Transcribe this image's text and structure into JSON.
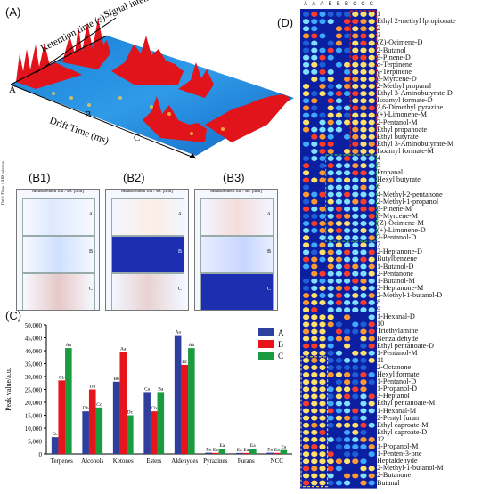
{
  "panelA": {
    "label": "(A)",
    "axis_retention": "Retention time (s)",
    "axis_signal": "Signal intensity (v)",
    "axis_drift": "Drift Time (ms)",
    "samples": [
      "A",
      "B",
      "C"
    ]
  },
  "panelB": {
    "labels": [
      "(B1)",
      "(B2)",
      "(B3)"
    ],
    "title": "Measurement run / sec [min]",
    "ylabel": "Drift Time / RIP relative",
    "rows": [
      "A",
      "B",
      "C"
    ]
  },
  "panelD": {
    "label": "(D)",
    "columns": [
      "A",
      "A",
      "A",
      "B",
      "B",
      "B",
      "C",
      "C",
      "C"
    ],
    "compounds": [
      "1",
      "Ethyl 2-methyl lpropionate",
      "2",
      "3",
      "(Z)-Ocimene-D",
      "2-Butanol",
      "β-Pinene-D",
      "α-Terpinene",
      "γ-Terpinene",
      "β-Myrcene-D",
      "2-Methyl propanal",
      "Ethyl 3-Aminobutyrate-D",
      "Isoamyl formate-D",
      "2,6-Dimethyl pyrazine",
      "(+)-Limonene-M",
      "2-Pentanol-M",
      "Ethyl propanoate",
      "Ethyl butyrate",
      "Ethyl 3-Aminobutyrate-M",
      "Isoamyl formate-M",
      "4",
      "5",
      "Propanal",
      "Hexyl butyrate",
      "6",
      "4-Methyl-2-pentanone",
      "2-Methyl-1-propanol",
      "β-Pinene-M",
      "β-Myrcene-M",
      "(Z)-Ocimene-M",
      "(+)-Limonene-D",
      "2-Pentanol-D",
      "7",
      "2-Heptanone-D",
      "Butylbenzene",
      "1-Butanol-D",
      "2-Pentanone",
      "1-Butanol-M",
      "2-Heptanone-M",
      "2-Methyl-1-butanol-D",
      "8",
      "9",
      "1-Hexanal-D",
      "10",
      "Triethylamine",
      "Benzaldehyde",
      "Ethyl pentanoate-D",
      "1-Pentanol-M",
      "11",
      "2-Octanone",
      "Hexyl formate",
      "1-Pentanol-D",
      "1-Propanol-D",
      "3-Heptanol",
      "Ethyl pentanoate-M",
      "1-Hexanal-M",
      "2-Pentyl furan",
      "Ethyl caproate-M",
      "Ethyl caproate-D",
      "12",
      "1-Propanol-M",
      "1-Penten-3-one",
      "Heptaldehyde",
      "2-Methyl-1-butanol-M",
      "2-Butanone",
      "Butanal"
    ]
  },
  "chart_data": {
    "label": "(C)",
    "type": "bar",
    "categories": [
      "Terpenes",
      "Alcohols",
      "Ketones",
      "Esters",
      "Aldehydes",
      "Pyrazines",
      "Furans",
      "NCC"
    ],
    "series": [
      {
        "name": "A",
        "color": "#2e3f9e",
        "values": [
          6500,
          16500,
          28000,
          24000,
          46000,
          500,
          400,
          500
        ],
        "labels": [
          "Cc",
          "Db",
          "Bb",
          "Ca",
          "Aa",
          "Ea",
          "Ea",
          "Ea"
        ]
      },
      {
        "name": "B",
        "color": "#e8141c",
        "values": [
          28500,
          25000,
          39500,
          16500,
          34500,
          400,
          400,
          400
        ],
        "labels": [
          "Cb",
          "Da",
          "Aa",
          "Cb",
          "Bc",
          "Ea",
          "Ea",
          "Ea"
        ]
      },
      {
        "name": "C",
        "color": "#1a9b3f",
        "values": [
          41000,
          18000,
          15000,
          24000,
          41000,
          2000,
          2000,
          1500
        ],
        "labels": [
          "Aa",
          "Cc",
          "Dc",
          "Ba",
          "Ab",
          "Ea",
          "Ea",
          "Ea"
        ]
      }
    ],
    "ylabel": "Peak value/a.u.",
    "yticks": [
      "0",
      "5,000",
      "10,000",
      "15,000",
      "20,000",
      "25,000",
      "30,000",
      "35,000",
      "40,000",
      "45,000",
      "50,000"
    ],
    "ylim": [
      0,
      50000
    ],
    "legend": "top-right"
  }
}
